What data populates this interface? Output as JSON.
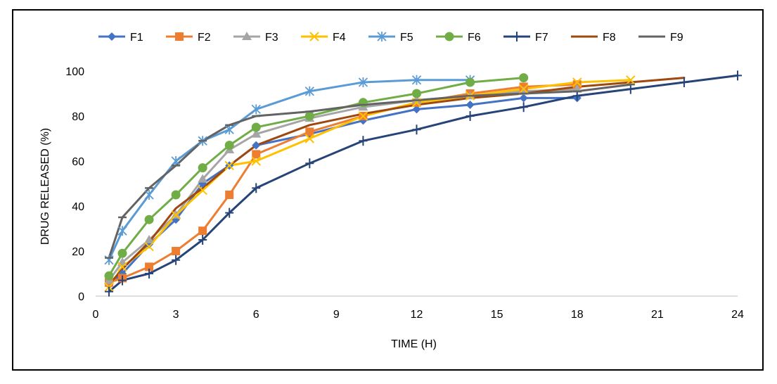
{
  "chart_data": {
    "type": "line",
    "title": "",
    "xlabel": "TIME (H)",
    "ylabel": "DRUG RELEASED (%)",
    "xlim": [
      0,
      24
    ],
    "ylim": [
      0,
      100
    ],
    "x_ticks": [
      0,
      3,
      6,
      9,
      12,
      15,
      18,
      21,
      24
    ],
    "y_ticks": [
      0,
      20,
      40,
      60,
      80,
      100
    ],
    "grid": false,
    "legend_position": "top",
    "series": [
      {
        "name": "F1",
        "color": "#4472C4",
        "marker": "diamond",
        "x": [
          0.5,
          1,
          2,
          3,
          4,
          5,
          6,
          8,
          10,
          12,
          14,
          16,
          18
        ],
        "y": [
          5,
          10,
          23,
          34,
          50,
          58,
          67,
          72,
          78,
          83,
          85,
          88,
          88
        ]
      },
      {
        "name": "F2",
        "color": "#ED7D31",
        "marker": "square",
        "x": [
          0.5,
          1,
          2,
          3,
          4,
          5,
          6,
          8,
          10,
          12,
          14,
          16,
          18
        ],
        "y": [
          6,
          8,
          13,
          20,
          29,
          45,
          63,
          73,
          80,
          86,
          90,
          93,
          94
        ]
      },
      {
        "name": "F3",
        "color": "#A5A5A5",
        "marker": "triangle",
        "x": [
          0.5,
          1,
          2,
          3,
          4,
          5,
          6,
          8,
          10,
          12,
          14,
          16,
          18
        ],
        "y": [
          7,
          15,
          25,
          36,
          52,
          65,
          72,
          79,
          84,
          87,
          89,
          91,
          92
        ]
      },
      {
        "name": "F4",
        "color": "#FFC000",
        "marker": "x",
        "x": [
          0.5,
          1,
          2,
          3,
          4,
          5,
          6,
          8,
          10,
          12,
          14,
          16,
          18,
          20
        ],
        "y": [
          4,
          13,
          22,
          36,
          47,
          58,
          60,
          70,
          80,
          86,
          89,
          92,
          95,
          96
        ]
      },
      {
        "name": "F5",
        "color": "#5B9BD5",
        "marker": "star",
        "x": [
          0.5,
          1,
          2,
          3,
          4,
          5,
          6,
          8,
          10,
          12,
          14
        ],
        "y": [
          16,
          29,
          45,
          60,
          69,
          74,
          83,
          91,
          95,
          96,
          96
        ]
      },
      {
        "name": "F6",
        "color": "#70AD47",
        "marker": "circle",
        "x": [
          0.5,
          1,
          2,
          3,
          4,
          5,
          6,
          8,
          10,
          12,
          14,
          16
        ],
        "y": [
          9,
          19,
          34,
          45,
          57,
          67,
          75,
          80,
          86,
          90,
          95,
          97
        ]
      },
      {
        "name": "F7",
        "color": "#264478",
        "marker": "plus",
        "x": [
          0.5,
          1,
          2,
          3,
          4,
          5,
          6,
          8,
          10,
          12,
          14,
          16,
          18,
          20,
          22,
          24
        ],
        "y": [
          2,
          7,
          10,
          16,
          25,
          37,
          48,
          59,
          69,
          74,
          80,
          84,
          89,
          92,
          95,
          98
        ]
      },
      {
        "name": "F8",
        "color": "#9E480E",
        "marker": "none",
        "x": [
          0.5,
          1,
          2,
          3,
          4,
          5,
          6,
          8,
          10,
          12,
          14,
          16,
          18,
          20,
          22
        ],
        "y": [
          5,
          12,
          24,
          39,
          48,
          58,
          67,
          76,
          81,
          85,
          88,
          90,
          93,
          95,
          97
        ]
      },
      {
        "name": "F9",
        "color": "#636363",
        "marker": "dash",
        "x": [
          0.5,
          1,
          2,
          3,
          4,
          5,
          6,
          8,
          10,
          12,
          14,
          16,
          18,
          20
        ],
        "y": [
          17,
          35,
          48,
          58,
          69,
          76,
          80,
          82,
          85,
          87,
          89,
          90,
          91,
          94
        ]
      }
    ]
  }
}
